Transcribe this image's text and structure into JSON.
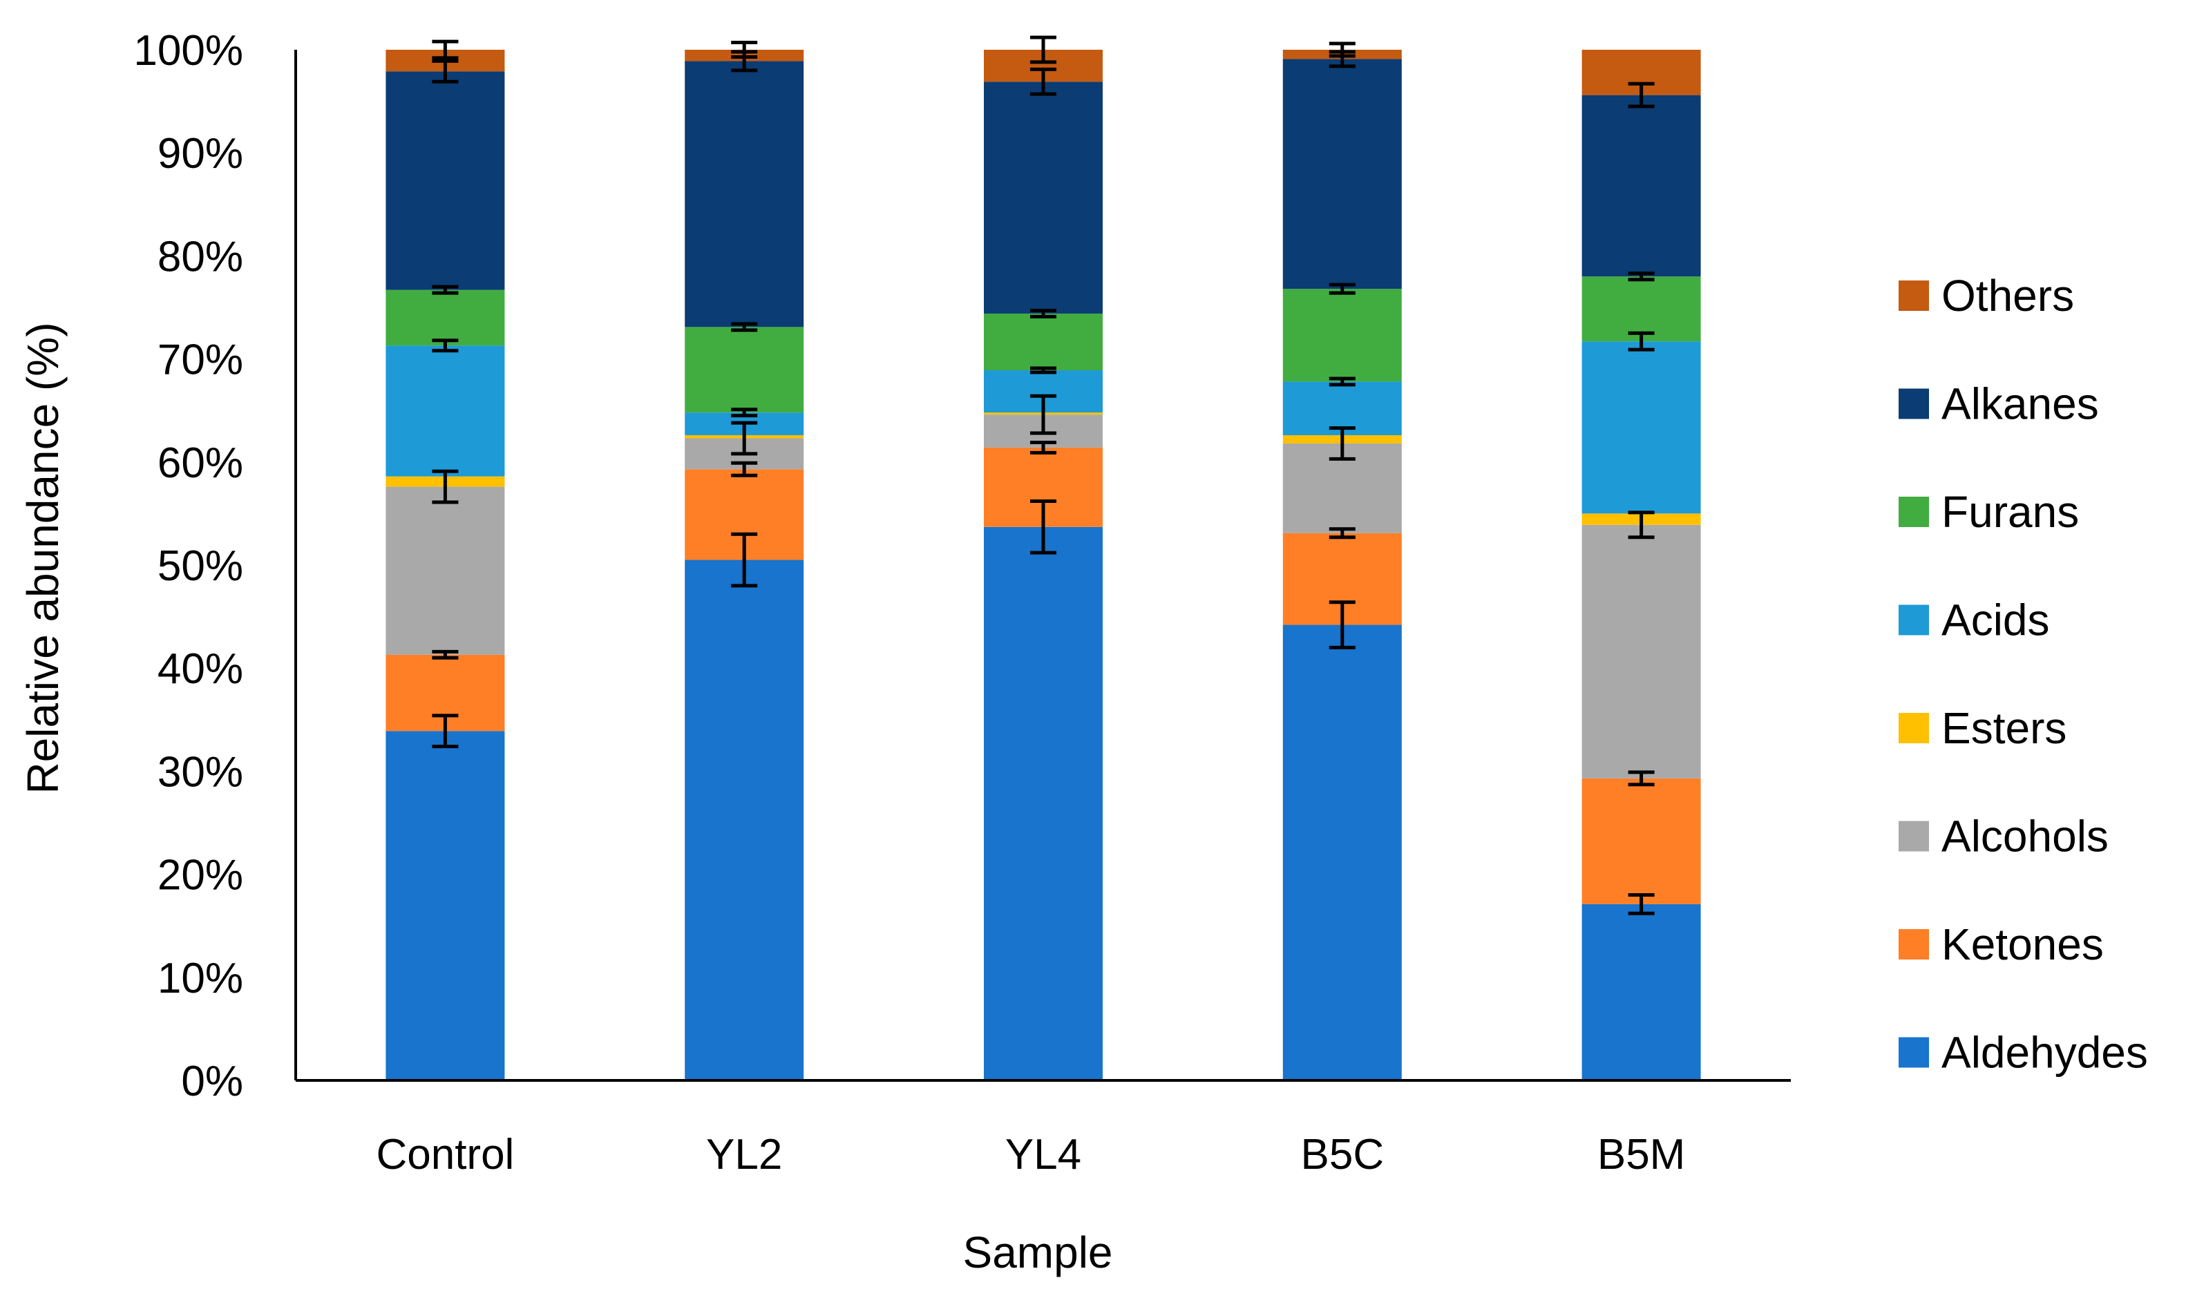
{
  "chart_data": {
    "type": "bar",
    "stacked": true,
    "percent_stacked": true,
    "xlabel": "Sample",
    "ylabel": "Relative abundance (%)",
    "categories": [
      "Control",
      "YL2",
      "YL4",
      "B5C",
      "B5M"
    ],
    "ylim": [
      0,
      100
    ],
    "yticks": [
      "0%",
      "10%",
      "20%",
      "30%",
      "40%",
      "50%",
      "60%",
      "70%",
      "80%",
      "90%",
      "100%"
    ],
    "grid": false,
    "legend_position": "right",
    "series": [
      {
        "name": "Aldehydes",
        "color": "#1874CD",
        "values": [
          33.9,
          50.5,
          53.7,
          44.2,
          17.1
        ],
        "errors": [
          1.5,
          2.5,
          2.5,
          2.2,
          0.9
        ]
      },
      {
        "name": "Ketones",
        "color": "#FF7F27",
        "values": [
          7.4,
          8.8,
          7.7,
          8.9,
          12.2
        ],
        "errors": [
          0.3,
          0.6,
          0.5,
          0.4,
          0.6
        ]
      },
      {
        "name": "Alcohols",
        "color": "#A9A9A9",
        "values": [
          16.3,
          3.0,
          3.2,
          8.7,
          24.6
        ],
        "errors": [
          1.5,
          1.5,
          1.8,
          1.5,
          1.2
        ]
      },
      {
        "name": "Esters",
        "color": "#FFC000",
        "values": [
          1.0,
          0.3,
          0.2,
          0.8,
          1.1
        ],
        "errors": [
          0,
          0,
          0,
          0,
          0
        ]
      },
      {
        "name": "Acids",
        "color": "#1E9AD6",
        "values": [
          12.7,
          2.2,
          4.1,
          5.2,
          16.7
        ],
        "errors": [
          0.5,
          0.3,
          0.2,
          0.3,
          0.8
        ]
      },
      {
        "name": "Furans",
        "color": "#41AD41",
        "values": [
          5.4,
          8.3,
          5.5,
          9.0,
          6.3
        ],
        "errors": [
          0.3,
          0.3,
          0.3,
          0.4,
          0.3
        ]
      },
      {
        "name": "Alkanes",
        "color": "#0B3C73",
        "values": [
          21.2,
          25.8,
          22.5,
          22.3,
          17.6
        ],
        "errors": [
          1.0,
          0.9,
          1.2,
          0.7,
          1.1
        ]
      },
      {
        "name": "Others",
        "color": "#C55A11",
        "values": [
          2.1,
          1.1,
          3.1,
          0.9,
          4.4
        ],
        "errors": [
          0.8,
          0.7,
          1.2,
          0.6,
          0.0
        ]
      }
    ]
  }
}
